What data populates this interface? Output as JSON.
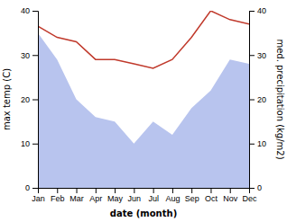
{
  "chart_data": {
    "type": "line",
    "xlabel": "date (month)",
    "ylabel": "max temp (C)",
    "y2label": "med. precipitation (kg/m2)",
    "categories": [
      "Jan",
      "Feb",
      "Mar",
      "Apr",
      "May",
      "Jun",
      "Jul",
      "Aug",
      "Sep",
      "Oct",
      "Nov",
      "Dec"
    ],
    "series": [
      {
        "type": "area",
        "color": "#b8c4ee",
        "values": [
          35,
          29,
          20,
          16,
          15,
          10,
          15,
          12,
          18,
          22,
          29,
          28
        ]
      },
      {
        "type": "line",
        "axis": "y2",
        "color": "#c0392b",
        "values": [
          36.5,
          34.0,
          33.0,
          29.0,
          29.0,
          28.0,
          27.0,
          29.0,
          34.0,
          40.0,
          38.0,
          37.0
        ]
      }
    ],
    "ylim": [
      0,
      40
    ],
    "yticks": [
      0,
      10,
      20,
      30,
      40
    ],
    "y2lim": [
      0,
      40
    ],
    "y2ticks": [
      0,
      10,
      20,
      30,
      40
    ],
    "grid": false
  }
}
